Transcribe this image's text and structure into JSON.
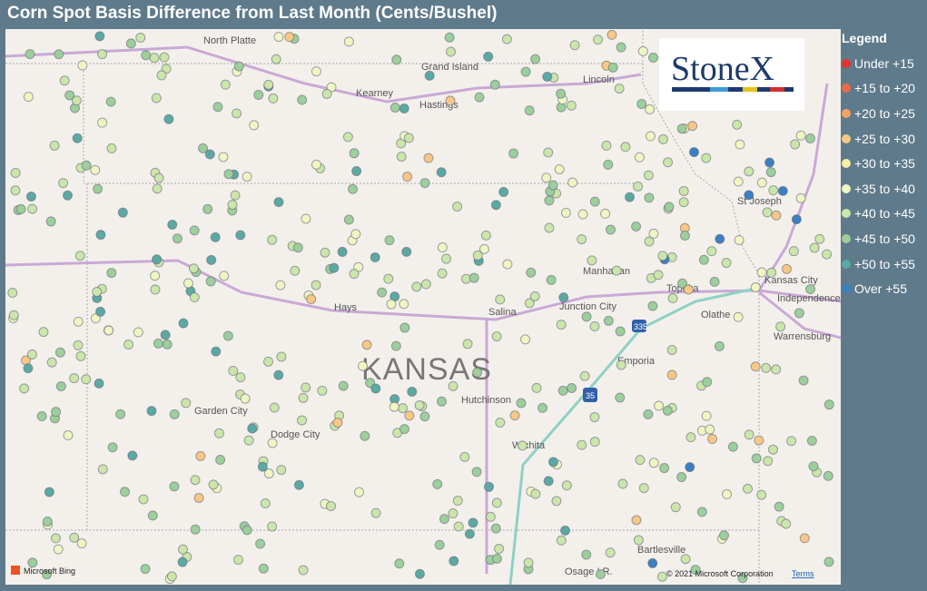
{
  "header": {
    "title": "Corn Spot Basis Difference from Last Month (Cents/Bushel)"
  },
  "legend": {
    "title": "Legend",
    "items": [
      {
        "label": "Under +15",
        "color": "#e3342f"
      },
      {
        "label": "+15 to +20",
        "color": "#ef6a48"
      },
      {
        "label": "+20 to +25",
        "color": "#f4a262"
      },
      {
        "label": "+25 to +30",
        "color": "#f7c885"
      },
      {
        "label": "+30 to +35",
        "color": "#f7f0a2"
      },
      {
        "label": "+35 to +40",
        "color": "#eef6c2"
      },
      {
        "label": "+40 to +45",
        "color": "#cbe6ab"
      },
      {
        "label": "+45 to +50",
        "color": "#9ccf9b"
      },
      {
        "label": "+50 to +55",
        "color": "#5ba9a3"
      },
      {
        "label": "Over +55",
        "color": "#3b80c2"
      }
    ]
  },
  "map": {
    "places": [
      "North Platte",
      "Grand Island",
      "Kearney",
      "Hastings",
      "Lincoln",
      "St Joseph",
      "Manhattan",
      "Topeka",
      "Kansas City",
      "Independence",
      "Hays",
      "Salina",
      "Junction City",
      "Olathe",
      "Warrensburg",
      "Emporia",
      "KANSAS",
      "Hutchinson",
      "Garden City",
      "Dodge City",
      "Wichita",
      "Bartlesville",
      "Osage I.R."
    ],
    "shields": [
      "335",
      "35"
    ],
    "logo": "StoneX",
    "attribution": "Microsoft Bing",
    "copyright": "© 2021 Microsoft Corporation",
    "terms": "Terms"
  }
}
